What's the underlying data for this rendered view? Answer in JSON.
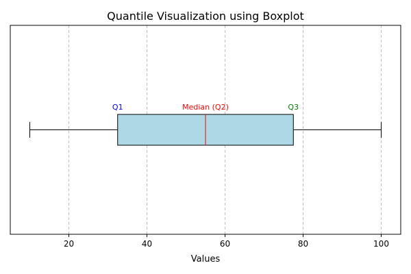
{
  "chart_data": {
    "type": "boxplot",
    "orientation": "horizontal",
    "title": "Quantile Visualization using Boxplot",
    "xlabel": "Values",
    "ylabel": "",
    "xlim": [
      5,
      105
    ],
    "xticks": [
      20,
      40,
      60,
      80,
      100
    ],
    "grid": {
      "x": true,
      "y": false,
      "style": "dashed"
    },
    "box": {
      "min": 10,
      "q1": 32.5,
      "median": 55,
      "q3": 77.5,
      "max": 100,
      "fill_color": "#add8e6",
      "median_color": "#ff0000"
    },
    "annotations": [
      {
        "text": "Q1",
        "x": 32.5,
        "color": "#0000ff"
      },
      {
        "text": "Median (Q2)",
        "x": 55,
        "color": "#ff0000"
      },
      {
        "text": "Q3",
        "x": 77.5,
        "color": "#008000"
      }
    ]
  }
}
